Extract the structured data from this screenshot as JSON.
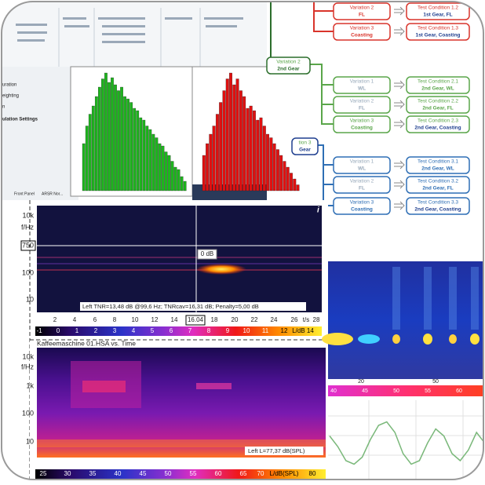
{
  "left_panel": {
    "labels": [
      "uration",
      "eighting",
      "n",
      "ulation Settings"
    ],
    "tabs": [
      "Front Panel",
      "ARSR Nor..."
    ]
  },
  "green_histogram": {
    "values": [
      40,
      55,
      65,
      72,
      80,
      88,
      95,
      100,
      92,
      96,
      90,
      85,
      88,
      80,
      78,
      75,
      70,
      68,
      62,
      60,
      55,
      52,
      48,
      45,
      40,
      38,
      33,
      30,
      25,
      20,
      18,
      12,
      8
    ]
  },
  "red_histogram": {
    "values": [
      30,
      40,
      48,
      55,
      65,
      75,
      85,
      95,
      100,
      90,
      95,
      85,
      80,
      70,
      72,
      68,
      60,
      62,
      55,
      48,
      45,
      40,
      35,
      30,
      25,
      20,
      15,
      10,
      5
    ]
  },
  "flowchart": {
    "gear_nodes": [
      {
        "title": "Variation 2",
        "sub": "2nd Gear"
      },
      {
        "title": "tion 3",
        "sub": "Gear"
      }
    ],
    "rows": [
      {
        "variation": "Variation 2",
        "cond": "FL",
        "test": "Test Condition 1.2",
        "detail": "1st Gear, FL"
      },
      {
        "variation": "Variation 3",
        "cond": "Coasting",
        "test": "Test Condition 1.3",
        "detail": "1st Gear, Coasting"
      },
      {
        "variation": "Variation 1",
        "cond": "WL",
        "test": "Test Condition 2.1",
        "detail": "2nd Gear, WL"
      },
      {
        "variation": "Variation 2",
        "cond": "FL",
        "test": "Test Condition 2.2",
        "detail": "2nd Gear, FL"
      },
      {
        "variation": "Variation 3",
        "cond": "Coasting",
        "test": "Test Condition 2.3",
        "detail": "2nd Gear, Coasting"
      },
      {
        "variation": "Variation 1",
        "cond": "WL",
        "test": "Test Condition 3.1",
        "detail": "2nd Gear, WL"
      },
      {
        "variation": "Variation 2",
        "cond": "FL",
        "test": "Test Condition 3.2",
        "detail": "2nd Gear, FL"
      },
      {
        "variation": "Variation 3",
        "cond": "Coasting",
        "test": "Test Condition 3.3",
        "detail": "2nd Gear, Coasting"
      }
    ]
  },
  "spectrogram_1": {
    "y_labels": [
      "10k",
      "f/Hz",
      "750",
      "100",
      "10"
    ],
    "x_labels": [
      "2",
      "4",
      "6",
      "8",
      "10",
      "12",
      "14",
      "16.04",
      "18",
      "20",
      "22",
      "24",
      "26",
      "t/s",
      "28"
    ],
    "marker_label": "0 dB",
    "info": "i",
    "status": "Left TNR=13,48 dB @99,6 Hz; TNRcav=16,31 dB; Penalty=5,00 dB",
    "colorbar_labels": [
      "-1",
      "0",
      "1",
      "2",
      "3",
      "4",
      "5",
      "6",
      "7",
      "8",
      "9",
      "10",
      "11",
      "12",
      "L/dB 14"
    ]
  },
  "spectrogram_2": {
    "title": "Kaffeemaschine 01.HSA vs. Time",
    "y_labels": [
      "10k",
      "f/Hz",
      "1k",
      "100",
      "10"
    ],
    "status": "Left L=77,37 dB(SPL)",
    "colorbar_labels": [
      "25",
      "30",
      "35",
      "40",
      "45",
      "50",
      "55",
      "60",
      "65",
      "70",
      "L/dB(SPL)",
      "80"
    ]
  },
  "heatmap": {
    "x_labels": [
      "20",
      "50"
    ],
    "colorbar_labels": [
      "40",
      "45",
      "50",
      "55",
      "60"
    ]
  },
  "line_chart": {
    "values": [
      55,
      40,
      20,
      15,
      25,
      50,
      70,
      75,
      60,
      30,
      15,
      20,
      45,
      65,
      55,
      30,
      20,
      35,
      60,
      45
    ]
  }
}
